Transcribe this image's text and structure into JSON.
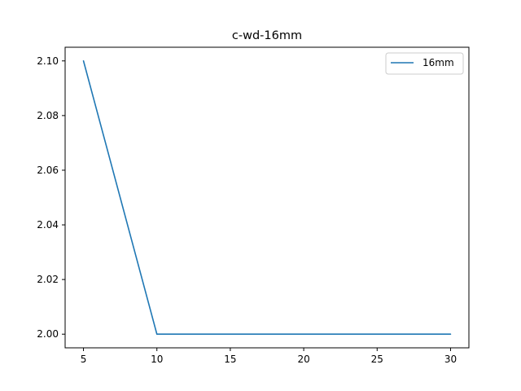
{
  "chart_data": {
    "type": "line",
    "title": "c-wd-16mm",
    "xlabel": "",
    "ylabel": "",
    "x": [
      5,
      10,
      15,
      20,
      25,
      30
    ],
    "series": [
      {
        "name": "16mm",
        "values": [
          2.1,
          2.0,
          2.0,
          2.0,
          2.0,
          2.0
        ],
        "color": "#1f77b4"
      }
    ],
    "xlim": [
      3.75,
      31.25
    ],
    "ylim": [
      1.995,
      2.105
    ],
    "xticks": [
      5,
      10,
      15,
      20,
      25,
      30
    ],
    "xtick_labels": [
      "5",
      "10",
      "15",
      "20",
      "25",
      "30"
    ],
    "yticks": [
      2.0,
      2.02,
      2.04,
      2.06,
      2.08,
      2.1
    ],
    "ytick_labels": [
      "2.00",
      "2.02",
      "2.04",
      "2.06",
      "2.08",
      "2.10"
    ],
    "grid": false,
    "legend_position": "top-right"
  }
}
